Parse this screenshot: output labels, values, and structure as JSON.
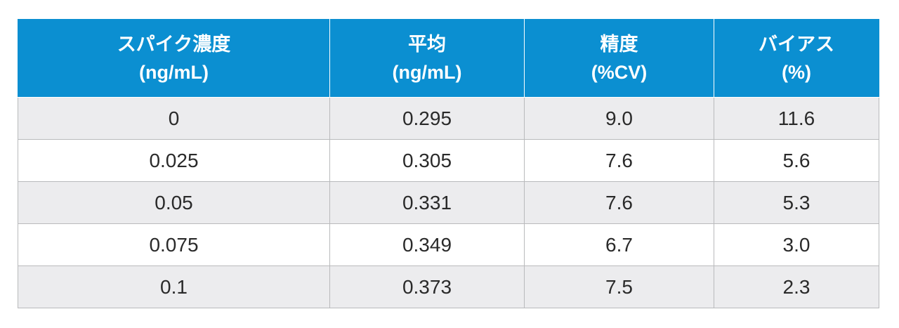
{
  "table": {
    "header": [
      [
        "スパイク濃度",
        "(ng/mL)"
      ],
      [
        "平均",
        "(ng/mL)"
      ],
      [
        "精度",
        "(%CV)"
      ],
      [
        "バイアス",
        "(%)"
      ]
    ],
    "rows": [
      [
        "0",
        "0.295",
        "9.0",
        "11.6"
      ],
      [
        "0.025",
        "0.305",
        "7.6",
        "5.6"
      ],
      [
        "0.05",
        "0.331",
        "7.6",
        "5.3"
      ],
      [
        "0.075",
        "0.349",
        "6.7",
        "3.0"
      ],
      [
        "0.1",
        "0.373",
        "7.5",
        "2.3"
      ]
    ]
  }
}
